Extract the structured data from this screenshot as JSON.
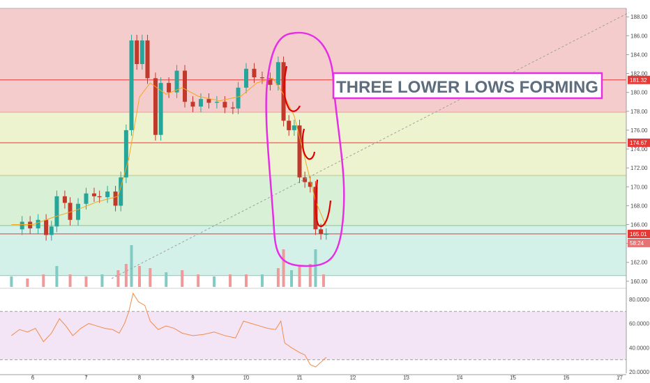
{
  "chart_data": [
    {
      "type": "candlestick",
      "price_ticks": [
        "188.00",
        "186.00",
        "184.00",
        "182.00",
        "180.00",
        "178.00",
        "176.00",
        "174.00",
        "172.00",
        "170.00",
        "168.00",
        "166.00",
        "164.00",
        "162.00",
        "160.00"
      ],
      "x_ticks": [
        "6",
        "7",
        "8",
        "9",
        "10",
        "11",
        "12",
        "13",
        "14",
        "15",
        "16",
        "17"
      ],
      "ylim": [
        159.4,
        188.9
      ],
      "zones": [
        {
          "from": 177.9,
          "to": 188.9,
          "color": "#f4cccc"
        },
        {
          "from": 171.2,
          "to": 177.9,
          "color": "#eef3cf"
        },
        {
          "from": 165.9,
          "to": 171.2,
          "color": "#d8f1d6"
        },
        {
          "from": 160.6,
          "to": 165.9,
          "color": "#d3f1e9"
        }
      ],
      "horizontal_lines": [
        {
          "value": 181.32,
          "label": "181.32",
          "color": "#e53935"
        },
        {
          "value": 174.67,
          "label": "174.67",
          "color": "#e53935"
        },
        {
          "value": 165.01,
          "label": "165.01",
          "color": "#e53935"
        },
        {
          "value": 177.9,
          "label": "",
          "color": "#ef9a9a"
        },
        {
          "value": 171.2,
          "label": "",
          "color": "#b5c98a"
        },
        {
          "value": 165.9,
          "label": "",
          "color": "#8bc78b"
        },
        {
          "value": 160.6,
          "label": "",
          "color": "#7fc9c4"
        }
      ],
      "countdown_label": "58:24",
      "annotation": "THREE LOWER LOWS FORMING",
      "close_series": [
        {
          "x": 5.6,
          "y": 165.5
        },
        {
          "x": 5.8,
          "y": 166.3
        },
        {
          "x": 5.95,
          "y": 165.6
        },
        {
          "x": 6.1,
          "y": 166.5
        },
        {
          "x": 6.25,
          "y": 164.9
        },
        {
          "x": 6.35,
          "y": 165.8
        },
        {
          "x": 6.45,
          "y": 169.0
        },
        {
          "x": 6.6,
          "y": 168.3
        },
        {
          "x": 6.7,
          "y": 166.5
        },
        {
          "x": 6.85,
          "y": 168.2
        },
        {
          "x": 7.0,
          "y": 169.3
        },
        {
          "x": 7.15,
          "y": 169.0
        },
        {
          "x": 7.25,
          "y": 168.9
        },
        {
          "x": 7.4,
          "y": 169.5
        },
        {
          "x": 7.55,
          "y": 168.0
        },
        {
          "x": 7.65,
          "y": 171.0
        },
        {
          "x": 7.75,
          "y": 176.0
        },
        {
          "x": 7.85,
          "y": 185.5
        },
        {
          "x": 7.95,
          "y": 183.0
        },
        {
          "x": 8.05,
          "y": 185.5
        },
        {
          "x": 8.15,
          "y": 181.5
        },
        {
          "x": 8.3,
          "y": 175.5
        },
        {
          "x": 8.4,
          "y": 181.0
        },
        {
          "x": 8.55,
          "y": 180.0
        },
        {
          "x": 8.7,
          "y": 182.3
        },
        {
          "x": 8.85,
          "y": 179.0
        },
        {
          "x": 9.0,
          "y": 178.5
        },
        {
          "x": 9.15,
          "y": 179.3
        },
        {
          "x": 9.3,
          "y": 178.9
        },
        {
          "x": 9.45,
          "y": 179.0
        },
        {
          "x": 9.6,
          "y": 178.4
        },
        {
          "x": 9.75,
          "y": 178.3
        },
        {
          "x": 9.85,
          "y": 180.5
        },
        {
          "x": 10.0,
          "y": 182.5
        },
        {
          "x": 10.15,
          "y": 181.6
        },
        {
          "x": 10.3,
          "y": 181.5
        },
        {
          "x": 10.45,
          "y": 180.8
        },
        {
          "x": 10.6,
          "y": 183.2
        },
        {
          "x": 10.7,
          "y": 177.0
        },
        {
          "x": 10.8,
          "y": 176.0
        },
        {
          "x": 10.9,
          "y": 176.5
        },
        {
          "x": 11.0,
          "y": 171.0
        },
        {
          "x": 11.1,
          "y": 170.5
        },
        {
          "x": 11.2,
          "y": 170.0
        },
        {
          "x": 11.3,
          "y": 165.5
        },
        {
          "x": 11.4,
          "y": 165.0
        },
        {
          "x": 11.5,
          "y": 165.0
        }
      ],
      "ma_series": [
        {
          "x": 5.6,
          "y": 166.0
        },
        {
          "x": 6.0,
          "y": 166.0
        },
        {
          "x": 6.4,
          "y": 166.8
        },
        {
          "x": 6.8,
          "y": 167.5
        },
        {
          "x": 7.2,
          "y": 168.4
        },
        {
          "x": 7.6,
          "y": 169.0
        },
        {
          "x": 7.8,
          "y": 173.0
        },
        {
          "x": 8.0,
          "y": 179.5
        },
        {
          "x": 8.2,
          "y": 181.0
        },
        {
          "x": 8.5,
          "y": 179.8
        },
        {
          "x": 8.8,
          "y": 180.5
        },
        {
          "x": 9.1,
          "y": 179.6
        },
        {
          "x": 9.5,
          "y": 179.1
        },
        {
          "x": 9.9,
          "y": 179.6
        },
        {
          "x": 10.2,
          "y": 181.0
        },
        {
          "x": 10.5,
          "y": 181.5
        },
        {
          "x": 10.7,
          "y": 179.8
        },
        {
          "x": 10.9,
          "y": 177.5
        },
        {
          "x": 11.1,
          "y": 173.0
        },
        {
          "x": 11.3,
          "y": 168.5
        },
        {
          "x": 11.5,
          "y": 165.8
        }
      ],
      "volume": [
        {
          "x": 5.6,
          "v": 0.25
        },
        {
          "x": 5.9,
          "v": 0.2
        },
        {
          "x": 6.2,
          "v": 0.3
        },
        {
          "x": 6.45,
          "v": 0.5
        },
        {
          "x": 6.7,
          "v": 0.3
        },
        {
          "x": 7.0,
          "v": 0.25
        },
        {
          "x": 7.3,
          "v": 0.3
        },
        {
          "x": 7.6,
          "v": 0.4
        },
        {
          "x": 7.75,
          "v": 0.55
        },
        {
          "x": 7.85,
          "v": 1.0
        },
        {
          "x": 8.0,
          "v": 0.5
        },
        {
          "x": 8.2,
          "v": 0.45
        },
        {
          "x": 8.5,
          "v": 0.35
        },
        {
          "x": 8.8,
          "v": 0.4
        },
        {
          "x": 9.1,
          "v": 0.3
        },
        {
          "x": 9.4,
          "v": 0.25
        },
        {
          "x": 9.7,
          "v": 0.3
        },
        {
          "x": 10.0,
          "v": 0.3
        },
        {
          "x": 10.3,
          "v": 0.3
        },
        {
          "x": 10.6,
          "v": 0.45
        },
        {
          "x": 10.7,
          "v": 0.9
        },
        {
          "x": 10.85,
          "v": 0.4
        },
        {
          "x": 11.0,
          "v": 0.5
        },
        {
          "x": 11.2,
          "v": 0.55
        },
        {
          "x": 11.3,
          "v": 0.9
        },
        {
          "x": 11.45,
          "v": 0.3
        }
      ]
    },
    {
      "type": "line",
      "y_ticks": [
        "80.0000",
        "60.0000",
        "40.0000",
        "20.0000"
      ],
      "ylim": [
        20,
        88
      ],
      "bands": [
        70,
        30
      ],
      "series": [
        {
          "values": [
            {
              "x": 5.6,
              "y": 50
            },
            {
              "x": 5.75,
              "y": 55
            },
            {
              "x": 5.9,
              "y": 53
            },
            {
              "x": 6.05,
              "y": 56
            },
            {
              "x": 6.2,
              "y": 45
            },
            {
              "x": 6.35,
              "y": 52
            },
            {
              "x": 6.5,
              "y": 64
            },
            {
              "x": 6.62,
              "y": 58
            },
            {
              "x": 6.75,
              "y": 50
            },
            {
              "x": 6.9,
              "y": 56
            },
            {
              "x": 7.05,
              "y": 60
            },
            {
              "x": 7.2,
              "y": 58
            },
            {
              "x": 7.35,
              "y": 56
            },
            {
              "x": 7.5,
              "y": 55
            },
            {
              "x": 7.62,
              "y": 52
            },
            {
              "x": 7.72,
              "y": 60
            },
            {
              "x": 7.8,
              "y": 70
            },
            {
              "x": 7.88,
              "y": 85
            },
            {
              "x": 7.98,
              "y": 78
            },
            {
              "x": 8.1,
              "y": 75
            },
            {
              "x": 8.2,
              "y": 62
            },
            {
              "x": 8.35,
              "y": 55
            },
            {
              "x": 8.5,
              "y": 58
            },
            {
              "x": 8.65,
              "y": 56
            },
            {
              "x": 8.8,
              "y": 52
            },
            {
              "x": 9.0,
              "y": 50
            },
            {
              "x": 9.2,
              "y": 51
            },
            {
              "x": 9.4,
              "y": 53
            },
            {
              "x": 9.6,
              "y": 50
            },
            {
              "x": 9.8,
              "y": 48
            },
            {
              "x": 9.95,
              "y": 62
            },
            {
              "x": 10.1,
              "y": 60
            },
            {
              "x": 10.25,
              "y": 58
            },
            {
              "x": 10.4,
              "y": 56
            },
            {
              "x": 10.55,
              "y": 55
            },
            {
              "x": 10.65,
              "y": 62
            },
            {
              "x": 10.72,
              "y": 44
            },
            {
              "x": 10.85,
              "y": 40
            },
            {
              "x": 11.0,
              "y": 36
            },
            {
              "x": 11.1,
              "y": 34
            },
            {
              "x": 11.2,
              "y": 26
            },
            {
              "x": 11.3,
              "y": 24
            },
            {
              "x": 11.4,
              "y": 28
            },
            {
              "x": 11.5,
              "y": 32
            }
          ]
        }
      ]
    }
  ]
}
